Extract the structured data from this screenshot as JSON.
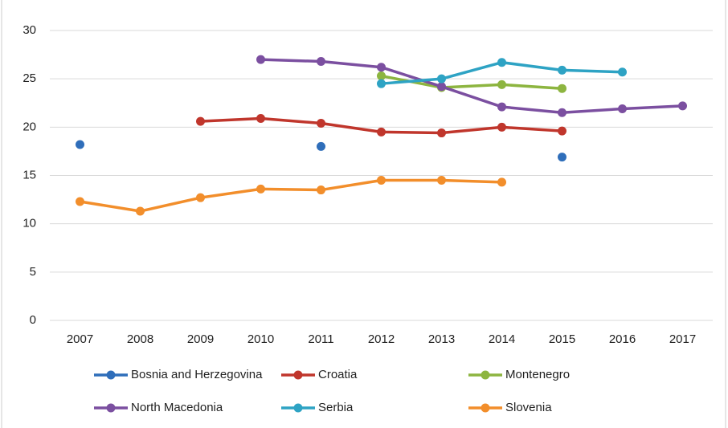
{
  "chart_data": {
    "type": "line",
    "categories": [
      "2007",
      "2008",
      "2009",
      "2010",
      "2011",
      "2012",
      "2013",
      "2014",
      "2015",
      "2016",
      "2017"
    ],
    "series": [
      {
        "name": "Bosnia and Herzegovina",
        "color": "#2f6eba",
        "values": [
          18.2,
          null,
          null,
          null,
          18.0,
          null,
          null,
          null,
          16.9,
          null,
          null
        ]
      },
      {
        "name": "Croatia",
        "color": "#c0362c",
        "values": [
          null,
          null,
          20.6,
          20.9,
          20.4,
          19.5,
          19.4,
          20.0,
          19.6,
          null,
          null
        ]
      },
      {
        "name": "Montenegro",
        "color": "#8db540",
        "values": [
          null,
          null,
          null,
          null,
          null,
          25.3,
          24.1,
          24.4,
          24.0,
          null,
          null
        ]
      },
      {
        "name": "North Macedonia",
        "color": "#7b4fa0",
        "values": [
          null,
          null,
          null,
          27.0,
          26.8,
          26.2,
          24.2,
          22.1,
          21.5,
          21.9,
          22.2
        ]
      },
      {
        "name": "Serbia",
        "color": "#2ea3c4",
        "values": [
          null,
          null,
          null,
          null,
          null,
          24.5,
          25.0,
          26.7,
          25.9,
          25.7,
          null
        ]
      },
      {
        "name": "Slovenia",
        "color": "#f28e2b",
        "values": [
          12.3,
          11.3,
          12.7,
          13.6,
          13.5,
          14.5,
          14.5,
          14.3,
          null,
          null,
          null
        ]
      }
    ],
    "ylim": [
      0,
      30
    ],
    "yticks": [
      0,
      5,
      10,
      15,
      20,
      25,
      30
    ],
    "grid": true,
    "legend": "bottom"
  }
}
